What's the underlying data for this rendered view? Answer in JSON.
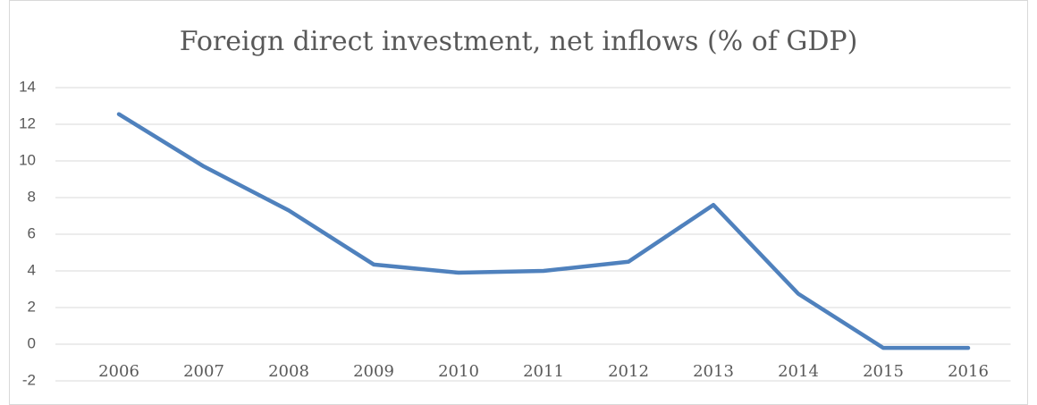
{
  "chart_data": {
    "type": "line",
    "title": "Foreign direct investment, net inflows (% of GDP)",
    "categories": [
      "2006",
      "2007",
      "2008",
      "2009",
      "2010",
      "2011",
      "2012",
      "2013",
      "2014",
      "2015",
      "2016"
    ],
    "series": [
      {
        "name": "Foreign direct investment, net inflows (% of GDP)",
        "color": "#4f81bd",
        "values": [
          12.55,
          9.7,
          7.3,
          4.35,
          3.9,
          4.0,
          4.5,
          7.6,
          2.75,
          -0.2,
          -0.2
        ]
      }
    ],
    "ylim": [
      -2,
      14
    ],
    "yticks": [
      -2,
      0,
      2,
      4,
      6,
      8,
      10,
      12,
      14
    ],
    "grid": true
  }
}
